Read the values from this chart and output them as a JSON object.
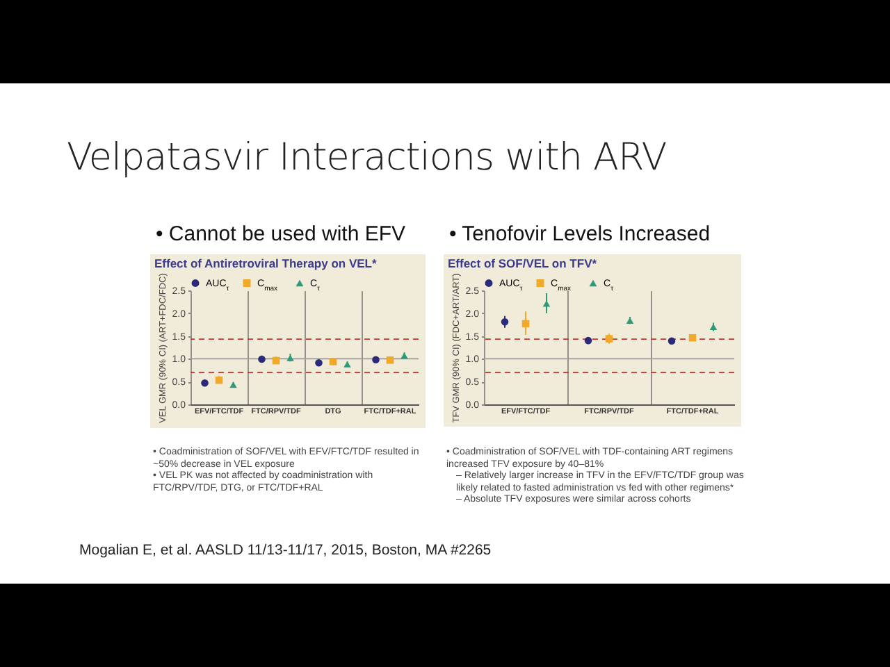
{
  "chart_data": [
    {
      "type": "other",
      "title": "Velpatasvir Interactions with ARV",
      "annotations": [
        "Mogalian E, et al. AASLD 11/13-11/17, 2015, Boston, MA #2265"
      ]
    },
    {
      "type": "scatter",
      "title": "Effect of Antiretroviral Therapy on VEL*",
      "subtitle": "• Cannot be used with EFV",
      "ylabel": "VEL GMR (90% CI) (ART+FDC/FDC)",
      "categories": [
        "EFV/FTC/TDF",
        "FTC/RPV/TDF",
        "DTG",
        "FTC/TDF+RAL"
      ],
      "series": [
        {
          "name": "AUC$_{τ}$",
          "color": "#2b2a78",
          "marker": "circle",
          "values": [
            0.47,
            0.99,
            0.91,
            0.98
          ],
          "errors": [
            [
              0.43,
              0.53
            ],
            [
              0.92,
              1.07
            ],
            [
              0.86,
              0.97
            ],
            [
              0.91,
              1.05
            ]
          ]
        },
        {
          "name": "C$_{max}$",
          "color": "#f0a92a",
          "marker": "square",
          "values": [
            0.53,
            0.96,
            0.94,
            0.97
          ],
          "errors": [
            [
              0.46,
              0.62
            ],
            [
              0.88,
              1.05
            ],
            [
              0.86,
              1.02
            ],
            [
              0.9,
              1.05
            ]
          ]
        },
        {
          "name": "C$_{τ}$",
          "color": "#2e9a78",
          "marker": "triangle",
          "values": [
            0.43,
            1.02,
            0.88,
            1.07
          ],
          "errors": [
            [
              0.38,
              0.49
            ],
            [
              0.94,
              1.11
            ],
            [
              0.82,
              0.94
            ],
            [
              1.0,
              1.14
            ]
          ]
        }
      ],
      "ylim": [
        0,
        2.5
      ],
      "yticks": [
        {
          "value": 0,
          "label": "0.0"
        },
        {
          "value": 0.5,
          "label": "0.5"
        },
        {
          "value": 1,
          "label": "1.0"
        },
        {
          "value": 1.5,
          "label": "1.5"
        },
        {
          "value": 2,
          "label": "2.0"
        },
        {
          "value": 2.5,
          "label": "2.5"
        }
      ],
      "ref_lines": [
        {
          "axis": "y",
          "value": 1,
          "color": "#9a9a9a",
          "line_style": "solid"
        },
        {
          "axis": "y",
          "value": 1.43,
          "color": "#c0392b",
          "line_style": "dashed"
        },
        {
          "axis": "y",
          "value": 0.7,
          "color": "#c0392b",
          "line_style": "dashed"
        }
      ],
      "grid": "x",
      "legend": "top",
      "annotations": [
        "• Coadministration of SOF/VEL with EFV/FTC/TDF resulted in ~50% decrease in VEL exposure",
        "• VEL PK was not affected by coadministration with FTC/RPV/TDF, DTG, or FTC/TDF+RAL"
      ]
    },
    {
      "type": "scatter",
      "title": "Effect of SOF/VEL on TFV*",
      "subtitle": "• Tenofovir Levels Increased",
      "ylabel": "TFV GMR (90% CI) (FDC+ART/ART)",
      "categories": [
        "EFV/FTC/TDF",
        "FTC/RPV/TDF",
        "FTC/TDF+RAL"
      ],
      "series": [
        {
          "name": "AUC$_{τ}$",
          "color": "#2b2a78",
          "marker": "circle",
          "values": [
            1.81,
            1.4,
            1.39
          ],
          "errors": [
            [
              1.68,
              1.94
            ],
            [
              1.34,
              1.45
            ],
            [
              1.34,
              1.44
            ]
          ]
        },
        {
          "name": "C$_{max}$",
          "color": "#f0a92a",
          "marker": "square",
          "values": [
            1.77,
            1.44,
            1.46
          ],
          "errors": [
            [
              1.53,
              2.04
            ],
            [
              1.33,
              1.55
            ],
            [
              1.39,
              1.54
            ]
          ]
        },
        {
          "name": "C$_{τ}$",
          "color": "#2e9a78",
          "marker": "triangle",
          "values": [
            2.21,
            1.84,
            1.7
          ],
          "errors": [
            [
              2.0,
              2.44
            ],
            [
              1.76,
              1.92
            ],
            [
              1.61,
              1.79
            ]
          ]
        }
      ],
      "ylim": [
        0,
        2.5
      ],
      "yticks": [
        {
          "value": 0,
          "label": "0.0"
        },
        {
          "value": 0.5,
          "label": "0.5"
        },
        {
          "value": 1,
          "label": "1.0"
        },
        {
          "value": 1.5,
          "label": "1.5"
        },
        {
          "value": 2,
          "label": "2.0"
        },
        {
          "value": 2.5,
          "label": "2.5"
        }
      ],
      "ref_lines": [
        {
          "axis": "y",
          "value": 1,
          "color": "#9a9a9a",
          "line_style": "solid"
        },
        {
          "axis": "y",
          "value": 1.43,
          "color": "#c0392b",
          "line_style": "dashed"
        },
        {
          "axis": "y",
          "value": 0.7,
          "color": "#c0392b",
          "line_style": "dashed"
        }
      ],
      "grid": "x",
      "legend": "top",
      "annotations": [
        "• Coadministration of SOF/VEL with TDF-containing ART regimens increased TFV exposure by 40–81%",
        "– Relatively larger increase in TFV in the EFV/FTC/TDF group was likely related to fasted administration vs fed with other regimens*",
        "– Absolute TFV exposures were similar across cohorts"
      ]
    }
  ]
}
